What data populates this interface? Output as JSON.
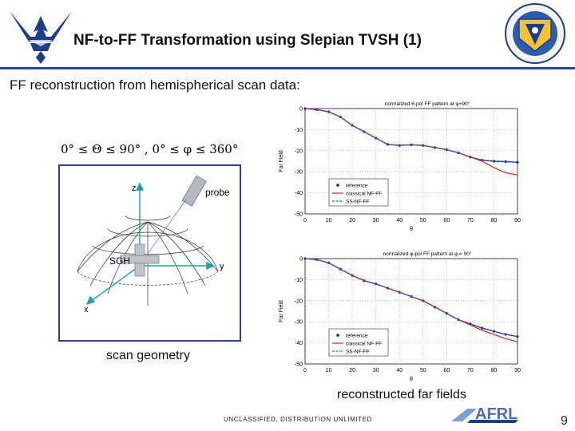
{
  "slide": {
    "title": "NF-to-FF Transformation using Slepian TVSH (1)",
    "subtitle": "FF reconstruction from hemispherical scan data:",
    "formula": "0° ≤ Θ ≤ 90° , 0° ≤ φ ≤ 360°",
    "geometry_caption": "scan geometry",
    "ff_caption": "reconstructed far fields",
    "footer_classification": "UNCLASSIFIED, DISTRIBUTION UNLIMITED",
    "page_number": "9",
    "logo_left": "US Air Force wings logo",
    "logo_right": "AFRL shield emblem",
    "logo_bottom_text": "AFRL"
  },
  "geometry": {
    "z_label": "z",
    "y_label": "y",
    "x_label": "x",
    "probe_label": "probe",
    "sgh_label": "SGH"
  },
  "colors": {
    "rule": "#2a4d8f",
    "box": "#2b3f9a",
    "reference": "#1a237e",
    "classical": "#e0201b",
    "ss": "#3b5bd6"
  },
  "chart_data": [
    {
      "type": "line",
      "title": "normalized θ-pol FF pattern at φ=90°",
      "xlabel": "θ",
      "ylabel": "Far Field",
      "xlim": [
        0,
        90
      ],
      "ylim": [
        -50,
        0
      ],
      "x_ticks": [
        0,
        10,
        20,
        30,
        40,
        50,
        60,
        70,
        80,
        90
      ],
      "y_ticks": [
        0,
        -10,
        -20,
        -30,
        -40,
        -50
      ],
      "y_tick_labels": [
        "0",
        "-10",
        "-20",
        "-30",
        "-40",
        "-50"
      ],
      "grid": true,
      "legend_position": "lower-left-center",
      "x": [
        0,
        5,
        10,
        15,
        20,
        25,
        30,
        35,
        40,
        45,
        50,
        55,
        60,
        65,
        70,
        75,
        80,
        85,
        90
      ],
      "series": [
        {
          "name": "reference",
          "values": [
            0,
            -0.5,
            -1.5,
            -4,
            -8,
            -11,
            -14,
            -17,
            -17.5,
            -17.2,
            -17.5,
            -18.5,
            -19.5,
            -21,
            -23,
            -24.5,
            -25,
            -25.2,
            -25.5
          ]
        },
        {
          "name": "classical NF-FF",
          "values": [
            0,
            -0.5,
            -1.5,
            -4,
            -8,
            -11,
            -14,
            -17,
            -17.5,
            -17.2,
            -17.5,
            -18.5,
            -19.5,
            -21,
            -23,
            -25,
            -28,
            -30.5,
            -31.5
          ]
        },
        {
          "name": "SS-NF-FF",
          "values": [
            0,
            -0.5,
            -1.5,
            -4,
            -8,
            -11,
            -14,
            -17,
            -17.5,
            -17.2,
            -17.5,
            -18.5,
            -19.5,
            -21,
            -23,
            -24.5,
            -25,
            -25.2,
            -25.5
          ]
        }
      ]
    },
    {
      "type": "line",
      "title": "normalized φ-pol FF pattern at φ = 90°",
      "xlabel": "θ",
      "ylabel": "Far Field",
      "xlim": [
        0,
        90
      ],
      "ylim": [
        -50,
        0
      ],
      "x_ticks": [
        0,
        10,
        20,
        30,
        40,
        50,
        60,
        70,
        80,
        90
      ],
      "y_ticks": [
        0,
        -10,
        -20,
        -30,
        -40,
        -50
      ],
      "y_tick_labels": [
        "0",
        "-10",
        "-20",
        "-30",
        "-40",
        "-50"
      ],
      "grid": true,
      "legend_position": "lower-left-center",
      "x": [
        0,
        5,
        10,
        15,
        20,
        25,
        30,
        35,
        40,
        45,
        50,
        55,
        60,
        65,
        70,
        75,
        80,
        85,
        90
      ],
      "series": [
        {
          "name": "reference",
          "values": [
            0,
            -0.5,
            -2,
            -5,
            -8,
            -10.5,
            -12,
            -14,
            -16,
            -18,
            -20,
            -23,
            -26,
            -29,
            -31,
            -33,
            -34.5,
            -36,
            -37
          ]
        },
        {
          "name": "classical NF-FF",
          "values": [
            0,
            -0.5,
            -2,
            -5,
            -8,
            -10.5,
            -12,
            -14,
            -16,
            -18,
            -20,
            -23,
            -26,
            -29,
            -31.5,
            -34,
            -36,
            -38,
            -39.5
          ]
        },
        {
          "name": "SS-NF-FF",
          "values": [
            0,
            -0.5,
            -2,
            -5,
            -8,
            -10.5,
            -12,
            -14,
            -16,
            -18,
            -20,
            -23,
            -26,
            -29,
            -31,
            -33,
            -34.5,
            -36,
            -37
          ]
        }
      ]
    }
  ]
}
